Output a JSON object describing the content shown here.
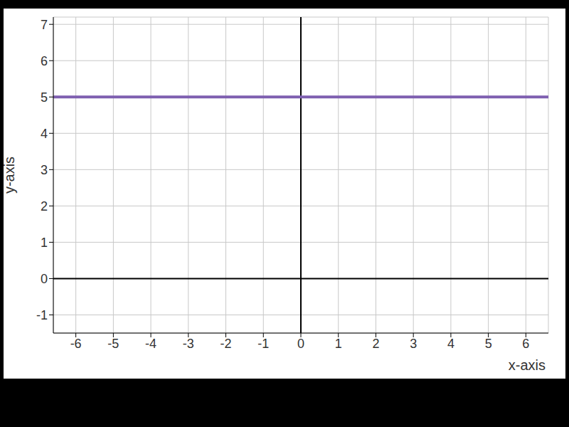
{
  "chart_data": {
    "type": "line",
    "x": [
      -6.6,
      6.6
    ],
    "values": [
      5,
      5
    ],
    "color": "#7e5fb0",
    "xlabel": "x-axis",
    "ylabel": "y-axis",
    "xlim": [
      -6.6,
      6.6
    ],
    "xticks": [
      -6,
      -5,
      -4,
      -3,
      -2,
      -1,
      0,
      1,
      2,
      3,
      4,
      5,
      6
    ],
    "ylim": [
      -1.5,
      7.2
    ],
    "yticks": [
      -1,
      0,
      1,
      2,
      3,
      4,
      5,
      6,
      7
    ],
    "grid": true
  }
}
